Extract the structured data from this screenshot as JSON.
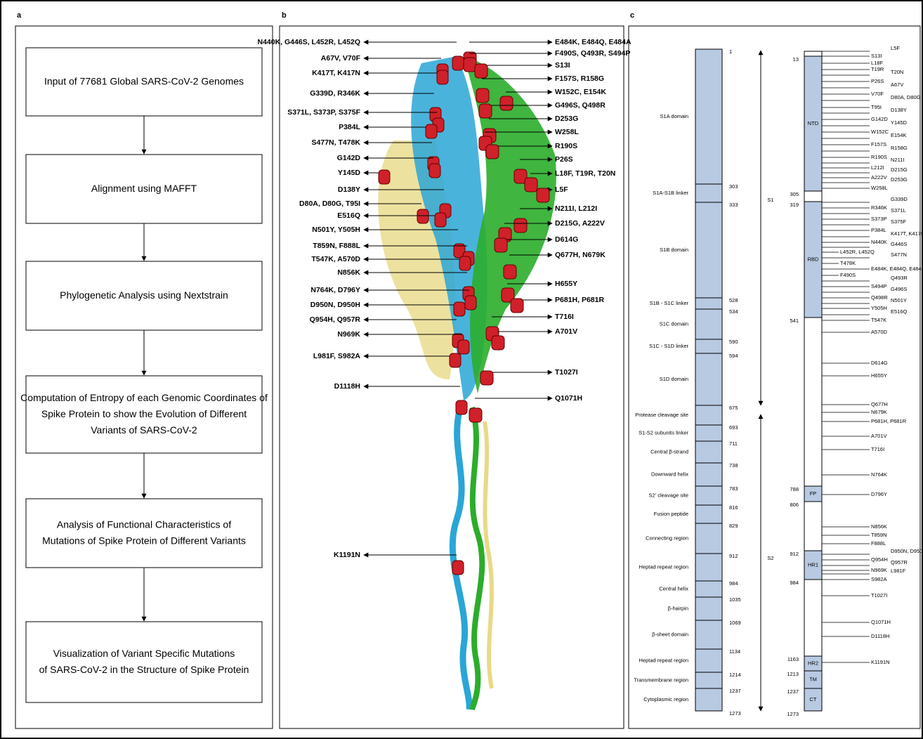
{
  "panel_a": {
    "label": "a",
    "steps": [
      "Input of 77681 Global SARS-CoV-2 Genomes",
      "Alignment using MAFFT",
      "Phylogenetic Analysis using Nextstrain",
      "Computation of Entropy of each Genomic Coordinates of Spike Protein to show the Evolution of Different Variants of SARS-CoV-2",
      "Analysis of Functional Characteristics of Mutations of Spike Protein of Different Variants",
      "Visualization of Variant Specific Mutations of SARS-CoV-2 in the Structure of Spike Protein"
    ]
  },
  "panel_b": {
    "label": "b",
    "left_labels": [
      "N440K, G446S, L452R, L452Q",
      "A67V, V70F",
      "K417T, K417N",
      "G339D, R346K",
      "S371L, S373P, S375F",
      "P384L",
      "S477N, T478K",
      "G142D",
      "Y145D",
      "D138Y",
      "D80A, D80G, T95I",
      "E516Q",
      "N501Y, Y505H",
      "T859N, F888L",
      "T547K, A570D",
      "N856K",
      "N764K, D796Y",
      "D950N, D950H",
      "Q954H, Q957R",
      "N969K",
      "L981F, S982A",
      "D1118H",
      "K1191N"
    ],
    "right_labels": [
      "E484K, E484Q, E484A",
      "F490S, Q493R, S494P",
      "S13I",
      "F157S, R158G",
      "W152C, E154K",
      "G496S, Q498R",
      "D253G",
      "W258L",
      "R190S",
      "P26S",
      "L18F, T19R, T20N",
      "L5F",
      "N211I, L212I",
      "D215G, A222V",
      "D614G",
      "Q677H, N679K",
      "H655Y",
      "P681H, P681R",
      "T716I",
      "A701V",
      "T1027I",
      "Q1071H"
    ]
  },
  "panel_c": {
    "label": "c",
    "regions": [
      "S1A domain",
      "S1A-S1B linker",
      "S1B domain",
      "S1B - S1C linker",
      "S1C domain",
      "S1C - S1D linker",
      "S1D domain",
      "Protease cleavage site",
      "S1-S2 subunits linker",
      "Central β-strand",
      "Downward helix",
      "S2' cleavage site",
      "Fusion peptide",
      "Connecting region",
      "Heptad repeat region",
      "Central helix",
      "β-hairpin",
      "β-sheet domain",
      "Heptad repeat region",
      "Transmembrane region",
      "Cytoplasmic region"
    ],
    "boundaries": [
      1,
      303,
      333,
      528,
      534,
      590,
      594,
      675,
      693,
      711,
      738,
      783,
      816,
      829,
      912,
      984,
      1035,
      1069,
      1134,
      1214,
      1237,
      1273
    ],
    "subunits": [
      "S1",
      "S2"
    ],
    "domain_positions": [
      13,
      305,
      319,
      541,
      788,
      806,
      912,
      984,
      1163,
      1213,
      1237,
      1273
    ],
    "domains": [
      "NTD",
      "RBD",
      "FP",
      "HR1",
      "HR2",
      "TM",
      "CT"
    ],
    "mutations": [
      "L5F",
      "S13I",
      "L18F",
      "T19R",
      "T20N",
      "P26S",
      "A67V",
      "V70F",
      "D80A, D80G",
      "T95I",
      "D138Y",
      "G142D",
      "Y145D",
      "W152C",
      "E154K",
      "F157S",
      "R158G",
      "R190S",
      "N211I",
      "L212I",
      "D215G",
      "A222V",
      "D253G",
      "W258L",
      "G339D",
      "R346K",
      "S371L",
      "S373P",
      "S375F",
      "P384L",
      "K417T, K417N",
      "N440K",
      "G446S",
      "L452R, L452Q",
      "S477N",
      "T478K",
      "E484K, E484Q, E484A",
      "F490S",
      "Q493R",
      "S494P",
      "G496S",
      "Q498R",
      "N501Y",
      "Y505H",
      "E516Q",
      "T547K",
      "A570D",
      "D614G",
      "H655Y",
      "Q677H",
      "N679K",
      "P681H, P681R",
      "A701V",
      "T716I",
      "N764K",
      "D796Y",
      "N856K",
      "T859N",
      "F888L",
      "D950N, D950H",
      "Q954H",
      "Q957R",
      "N969K",
      "L981F",
      "S982A",
      "T1027I",
      "Q1071H",
      "D1118H",
      "K1191N"
    ]
  }
}
